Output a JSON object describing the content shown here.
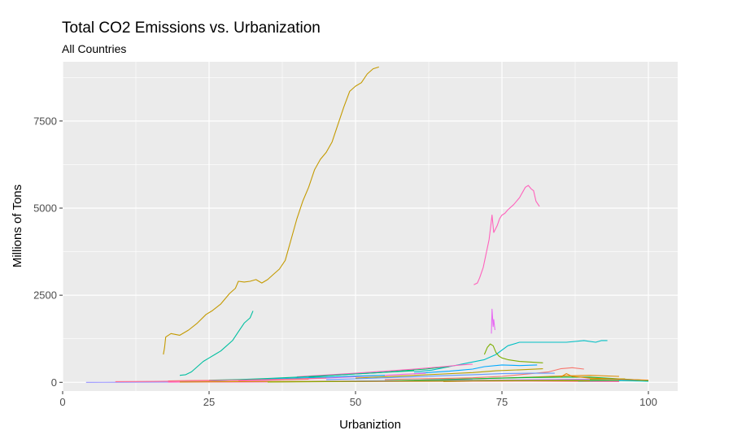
{
  "chart_data": {
    "type": "line",
    "title": "Total CO2 Emissions vs. Urbanization",
    "subtitle": "All Countries",
    "xlabel": "Urbaniztion",
    "ylabel": "Millions of Tons",
    "xlim": [
      0,
      105
    ],
    "ylim": [
      -250,
      9200
    ],
    "x_ticks": [
      0,
      25,
      50,
      75,
      100
    ],
    "y_ticks": [
      0,
      2500,
      5000,
      7500
    ],
    "x_tick_labels": [
      "0",
      "25",
      "50",
      "75",
      "100"
    ],
    "y_tick_labels": [
      "0",
      "2500",
      "5000",
      "7500"
    ],
    "grid": true,
    "legend": "none",
    "series": [
      {
        "color": "#C49A00",
        "points": [
          [
            17.2,
            800
          ],
          [
            17.4,
            1000
          ],
          [
            17.6,
            1300
          ],
          [
            18.5,
            1400
          ],
          [
            20,
            1350
          ],
          [
            21.5,
            1500
          ],
          [
            23,
            1700
          ],
          [
            24.5,
            1950
          ],
          [
            25.5,
            2050
          ],
          [
            27,
            2250
          ],
          [
            28.5,
            2550
          ],
          [
            29.5,
            2700
          ],
          [
            30,
            2900
          ],
          [
            31,
            2880
          ],
          [
            32,
            2900
          ],
          [
            33,
            2950
          ],
          [
            34,
            2850
          ],
          [
            35,
            2950
          ],
          [
            36,
            3100
          ],
          [
            37,
            3250
          ],
          [
            38,
            3500
          ],
          [
            39,
            4100
          ],
          [
            40,
            4700
          ],
          [
            41,
            5200
          ],
          [
            42,
            5600
          ],
          [
            43,
            6100
          ],
          [
            44,
            6400
          ],
          [
            45,
            6600
          ],
          [
            46,
            6900
          ],
          [
            47,
            7400
          ],
          [
            48,
            7900
          ],
          [
            49,
            8350
          ],
          [
            50,
            8500
          ],
          [
            51,
            8600
          ],
          [
            52,
            8850
          ],
          [
            53,
            9000
          ],
          [
            54,
            9050
          ]
        ]
      },
      {
        "color": "#00BFA0",
        "points": [
          [
            20,
            200
          ],
          [
            21,
            220
          ],
          [
            22,
            300
          ],
          [
            23,
            450
          ],
          [
            24,
            600
          ],
          [
            25,
            700
          ],
          [
            26,
            800
          ],
          [
            27,
            900
          ],
          [
            28,
            1050
          ],
          [
            29,
            1200
          ],
          [
            30,
            1450
          ],
          [
            31,
            1700
          ],
          [
            32,
            1850
          ],
          [
            32.5,
            2050
          ]
        ]
      },
      {
        "color": "#FF62BC",
        "points": [
          [
            70.2,
            2800
          ],
          [
            70.8,
            2850
          ],
          [
            71.2,
            3000
          ],
          [
            71.8,
            3300
          ],
          [
            72.3,
            3700
          ],
          [
            72.8,
            4100
          ],
          [
            73.1,
            4500
          ],
          [
            73.3,
            4800
          ],
          [
            73.6,
            4300
          ],
          [
            74.2,
            4500
          ],
          [
            74.6,
            4700
          ],
          [
            75,
            4800
          ],
          [
            75.5,
            4850
          ],
          [
            76,
            4950
          ],
          [
            77,
            5100
          ],
          [
            78,
            5300
          ],
          [
            79,
            5600
          ],
          [
            79.5,
            5650
          ],
          [
            80,
            5550
          ],
          [
            80.4,
            5500
          ],
          [
            80.8,
            5200
          ],
          [
            81.2,
            5100
          ],
          [
            81.4,
            5050
          ]
        ]
      },
      {
        "color": "#E76BF3",
        "points": [
          [
            73.2,
            1400
          ],
          [
            73.3,
            2100
          ],
          [
            73.5,
            1600
          ],
          [
            73.6,
            1800
          ],
          [
            73.8,
            1500
          ]
        ]
      },
      {
        "color": "#00BFC4",
        "points": [
          [
            60,
            300
          ],
          [
            63,
            350
          ],
          [
            66,
            450
          ],
          [
            69,
            550
          ],
          [
            72,
            650
          ],
          [
            74,
            800
          ],
          [
            76,
            1050
          ],
          [
            78,
            1150
          ],
          [
            80,
            1150
          ],
          [
            83,
            1150
          ],
          [
            86,
            1150
          ],
          [
            89,
            1200
          ],
          [
            91,
            1150
          ],
          [
            92,
            1200
          ],
          [
            93,
            1200
          ]
        ]
      },
      {
        "color": "#7CAE00",
        "points": [
          [
            72,
            800
          ],
          [
            72.5,
            1000
          ],
          [
            73,
            1100
          ],
          [
            73.5,
            1050
          ],
          [
            74,
            850
          ],
          [
            74.5,
            750
          ],
          [
            75,
            700
          ],
          [
            76,
            650
          ],
          [
            78,
            600
          ],
          [
            80,
            580
          ],
          [
            82,
            560
          ]
        ]
      },
      {
        "color": "#00A9FF",
        "points": [
          [
            60,
            250
          ],
          [
            63,
            290
          ],
          [
            66,
            320
          ],
          [
            68,
            350
          ],
          [
            70,
            380
          ],
          [
            72,
            450
          ],
          [
            75,
            500
          ],
          [
            78,
            480
          ],
          [
            81,
            500
          ]
        ]
      },
      {
        "color": "#00BE67",
        "points": [
          [
            42,
            150
          ],
          [
            46,
            200
          ],
          [
            50,
            240
          ],
          [
            54,
            280
          ],
          [
            58,
            330
          ],
          [
            62,
            380
          ],
          [
            64,
            420
          ],
          [
            66,
            450
          ]
        ]
      },
      {
        "color": "#F8766D",
        "points": [
          [
            55,
            80
          ],
          [
            60,
            100
          ],
          [
            65,
            110
          ],
          [
            70,
            130
          ],
          [
            75,
            170
          ],
          [
            80,
            250
          ],
          [
            83,
            300
          ],
          [
            85,
            390
          ],
          [
            87,
            420
          ],
          [
            89,
            380
          ]
        ]
      },
      {
        "color": "#FF62BC",
        "points": [
          [
            40,
            160
          ],
          [
            45,
            210
          ],
          [
            50,
            260
          ],
          [
            55,
            320
          ],
          [
            60,
            380
          ],
          [
            65,
            450
          ],
          [
            68,
            500
          ],
          [
            70,
            520
          ]
        ]
      },
      {
        "color": "#B79F00",
        "points": [
          [
            50,
            120
          ],
          [
            55,
            160
          ],
          [
            60,
            200
          ],
          [
            65,
            240
          ],
          [
            70,
            280
          ],
          [
            74,
            330
          ],
          [
            78,
            360
          ],
          [
            82,
            390
          ]
        ]
      },
      {
        "color": "#00C08B",
        "points": [
          [
            25,
            60
          ],
          [
            30,
            80
          ],
          [
            35,
            110
          ],
          [
            40,
            150
          ],
          [
            45,
            190
          ],
          [
            50,
            240
          ],
          [
            55,
            290
          ],
          [
            60,
            330
          ]
        ]
      },
      {
        "color": "#619CFF",
        "points": [
          [
            45,
            80
          ],
          [
            50,
            100
          ],
          [
            55,
            130
          ],
          [
            60,
            160
          ],
          [
            65,
            190
          ],
          [
            70,
            220
          ],
          [
            75,
            250
          ],
          [
            80,
            260
          ],
          [
            84,
            260
          ]
        ]
      },
      {
        "color": "#DE8C00",
        "points": [
          [
            60,
            60
          ],
          [
            65,
            80
          ],
          [
            70,
            100
          ],
          [
            75,
            120
          ],
          [
            80,
            150
          ],
          [
            85,
            180
          ],
          [
            90,
            200
          ],
          [
            95,
            170
          ]
        ]
      },
      {
        "color": "#F564E3",
        "points": [
          [
            30,
            40
          ],
          [
            35,
            60
          ],
          [
            40,
            90
          ],
          [
            45,
            120
          ],
          [
            50,
            160
          ],
          [
            55,
            200
          ],
          [
            58,
            230
          ],
          [
            62,
            260
          ]
        ]
      },
      {
        "color": "#00B4F0",
        "points": [
          [
            20,
            30
          ],
          [
            25,
            40
          ],
          [
            30,
            60
          ],
          [
            35,
            90
          ],
          [
            40,
            120
          ],
          [
            45,
            150
          ],
          [
            50,
            180
          ],
          [
            55,
            200
          ]
        ]
      },
      {
        "color": "#F8766D",
        "points": [
          [
            18,
            40
          ],
          [
            22,
            50
          ],
          [
            26,
            55
          ],
          [
            30,
            60
          ],
          [
            34,
            70
          ],
          [
            38,
            80
          ],
          [
            42,
            90
          ]
        ]
      },
      {
        "color": "#9590FF",
        "points": [
          [
            4,
            0
          ],
          [
            10,
            2
          ],
          [
            20,
            8
          ],
          [
            30,
            15
          ],
          [
            40,
            25
          ],
          [
            50,
            40
          ],
          [
            60,
            55
          ],
          [
            70,
            70
          ]
        ]
      },
      {
        "color": "#FF6C91",
        "points": [
          [
            9,
            20
          ],
          [
            15,
            25
          ],
          [
            20,
            35
          ],
          [
            25,
            45
          ],
          [
            30,
            60
          ],
          [
            35,
            80
          ],
          [
            40,
            100
          ],
          [
            45,
            120
          ]
        ]
      },
      {
        "color": "#00BA38",
        "points": [
          [
            55,
            40
          ],
          [
            60,
            60
          ],
          [
            65,
            80
          ],
          [
            70,
            100
          ],
          [
            75,
            120
          ],
          [
            80,
            140
          ],
          [
            85,
            150
          ],
          [
            90,
            150
          ],
          [
            95,
            100
          ],
          [
            100,
            50
          ]
        ]
      },
      {
        "color": "#A3A500",
        "points": [
          [
            65,
            20
          ],
          [
            70,
            30
          ],
          [
            75,
            45
          ],
          [
            80,
            60
          ],
          [
            85,
            80
          ],
          [
            90,
            90
          ],
          [
            96,
            100
          ]
        ]
      },
      {
        "color": "#35A2FF",
        "points": [
          [
            40,
            20
          ],
          [
            50,
            30
          ],
          [
            60,
            40
          ],
          [
            70,
            50
          ],
          [
            80,
            60
          ],
          [
            90,
            60
          ],
          [
            98,
            70
          ]
        ]
      },
      {
        "color": "#E58700",
        "points": [
          [
            85,
            150
          ],
          [
            86,
            250
          ],
          [
            87,
            170
          ],
          [
            90,
            120
          ],
          [
            95,
            90
          ],
          [
            100,
            60
          ]
        ]
      },
      {
        "color": "#C77CFF",
        "points": [
          [
            30,
            10
          ],
          [
            40,
            20
          ],
          [
            50,
            30
          ],
          [
            60,
            45
          ],
          [
            70,
            60
          ],
          [
            80,
            75
          ],
          [
            90,
            85
          ]
        ]
      },
      {
        "color": "#FF61C3",
        "points": [
          [
            18,
            5
          ],
          [
            30,
            10
          ],
          [
            40,
            15
          ],
          [
            50,
            20
          ],
          [
            60,
            25
          ],
          [
            70,
            30
          ],
          [
            80,
            35
          ],
          [
            95,
            20
          ]
        ]
      },
      {
        "color": "#00C1A9",
        "points": [
          [
            88,
            30
          ],
          [
            90,
            40
          ],
          [
            95,
            50
          ],
          [
            98,
            40
          ],
          [
            100,
            30
          ]
        ]
      },
      {
        "color": "#D89000",
        "points": [
          [
            20,
            10
          ],
          [
            30,
            20
          ],
          [
            40,
            25
          ],
          [
            50,
            30
          ],
          [
            60,
            35
          ],
          [
            70,
            40
          ],
          [
            80,
            45
          ],
          [
            90,
            40
          ]
        ]
      },
      {
        "color": "#8AAB00",
        "points": [
          [
            35,
            10
          ],
          [
            45,
            20
          ],
          [
            55,
            30
          ],
          [
            65,
            40
          ],
          [
            75,
            50
          ],
          [
            85,
            55
          ],
          [
            95,
            50
          ]
        ]
      }
    ]
  }
}
